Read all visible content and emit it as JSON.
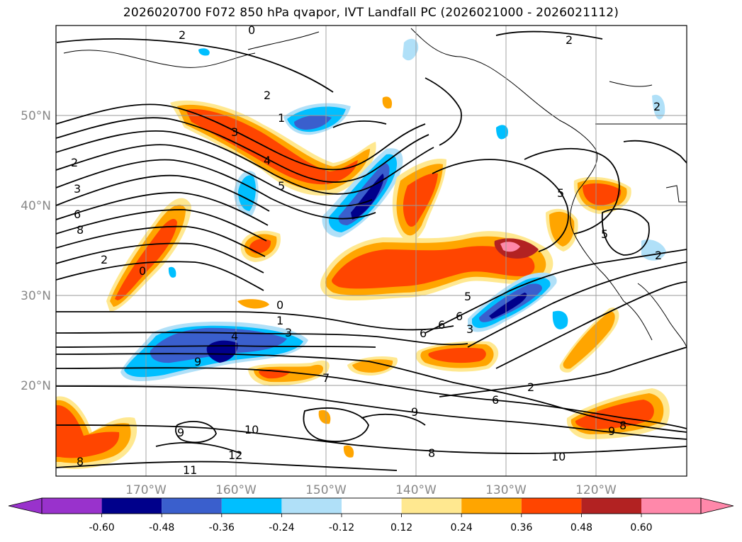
{
  "title": "2026020700 F072 850 hPa qvapor, IVT Landfall PC (2026021000 - 2026021112)",
  "map": {
    "lon_range": [
      -180,
      -110
    ],
    "lat_range": [
      10,
      60
    ],
    "lat_ticks": [
      "50°N",
      "40°N",
      "30°N",
      "20°N"
    ],
    "lon_ticks": [
      "170°W",
      "160°W",
      "150°W",
      "140°W",
      "130°W",
      "120°W"
    ],
    "gridlines": true,
    "contour_labels": [
      "2",
      "0",
      "2",
      "1",
      "3",
      "4",
      "5",
      "2",
      "3",
      "6",
      "8",
      "2",
      "0",
      "0",
      "1",
      "3",
      "4",
      "9",
      "5",
      "6",
      "6",
      "3",
      "6",
      "5",
      "5",
      "2",
      "9",
      "10",
      "12",
      "11",
      "9",
      "8",
      "8",
      "2",
      "6",
      "8",
      "9",
      "10",
      "2",
      "7",
      "2"
    ]
  },
  "colorbar": {
    "ticks": [
      "-0.60",
      "-0.48",
      "-0.36",
      "-0.24",
      "-0.12",
      "0.12",
      "0.24",
      "0.36",
      "0.48",
      "0.60"
    ],
    "colors": [
      "#9932cc",
      "#00008b",
      "#3a5fcd",
      "#00bfff",
      "#b0e0f8",
      "#ffffff",
      "#ffe890",
      "#ffa500",
      "#ff4500",
      "#b22222",
      "#ff88aa"
    ],
    "extend": "both"
  }
}
